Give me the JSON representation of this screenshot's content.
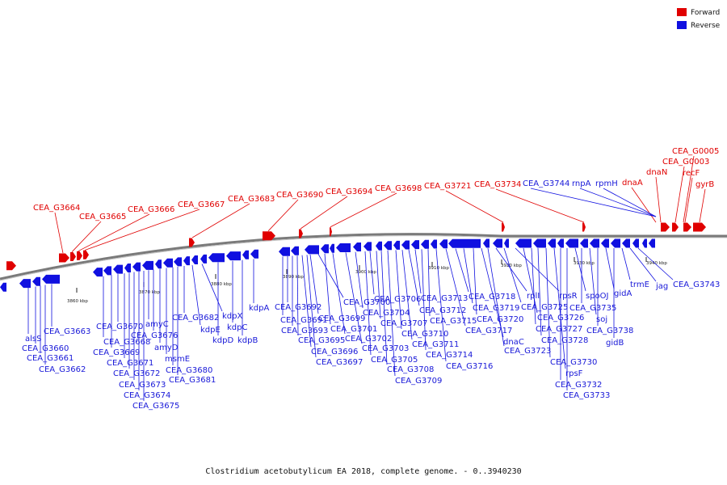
{
  "caption": "Clostridium acetobutylicum EA 2018, complete genome. - 0..3940230",
  "legend": [
    {
      "label": "Forward",
      "color": "#e00000"
    },
    {
      "label": "Reverse",
      "color": "#1010e0"
    }
  ],
  "colors": {
    "forward": "#e00000",
    "reverse": "#1010e0",
    "backbone": "#808080"
  },
  "ticks": [
    "3860 kbp",
    "3870 kbp",
    "3880 kbp",
    "3890 kbp",
    "3900 kbp",
    "3910 kbp",
    "3920 kbp",
    "3930 kbp",
    "3940 kbp"
  ],
  "forward_labels": [
    "CEA_G3664",
    "CEA_G3665",
    "CEA_G3666",
    "CEA_G3667",
    "CEA_G3683",
    "CEA_G3690",
    "CEA_G3694",
    "CEA_G3698",
    "CEA_G3721",
    "CEA_G3734",
    "dnaN",
    "dnaA",
    "CEA_G0003",
    "CEA_G0005",
    "recF",
    "gyrB"
  ],
  "reverse_top_labels": [
    "CEA_G3744",
    "rnpA",
    "rpmH"
  ],
  "reverse_labels": [
    "alsS",
    "CEA_G3660",
    "CEA_G3661",
    "CEA_G3662",
    "CEA_G3663",
    "CEA_G3668",
    "CEA_G3669",
    "CEA_G3670",
    "CEA_G3671",
    "CEA_G3672",
    "CEA_G3673",
    "CEA_G3674",
    "CEA_G3675",
    "amyC",
    "CEA_G3676",
    "amyD",
    "msmE",
    "CEA_G3680",
    "CEA_G3681",
    "CEA_G3682",
    "kdpE",
    "kdpX",
    "kdpD",
    "kdpC",
    "kdpB",
    "kdpA",
    "CEA_G3691",
    "CEA_G3692",
    "CEA_G3693",
    "CEA_G3695",
    "CEA_G3696",
    "CEA_G3697",
    "CEA_G3699",
    "CEA_G3700",
    "CEA_G3701",
    "CEA_G3702",
    "CEA_G3703",
    "CEA_G3704",
    "CEA_G3705",
    "CEA_G3706",
    "CEA_G3707",
    "CEA_G3708",
    "CEA_G3709",
    "CEA_G3710",
    "CEA_G3711",
    "CEA_G3712",
    "CEA_G3713",
    "CEA_G3714",
    "CEA_G3715",
    "CEA_G3716",
    "CEA_G3717",
    "CEA_G3718",
    "CEA_G3719",
    "CEA_G3720",
    "dnaC",
    "CEA_G3723",
    "rplI",
    "CEA_G3725",
    "rpsR",
    "CEA_G3726",
    "CEA_G3727",
    "CEA_G3728",
    "CEA_G3730",
    "rpsF",
    "CEA_G3732",
    "CEA_G3733",
    "spoOJ",
    "CEA_G3735",
    "soj",
    "CEA_G3738",
    "gidA",
    "gidB",
    "trmE",
    "jag",
    "CEA_G3743"
  ]
}
